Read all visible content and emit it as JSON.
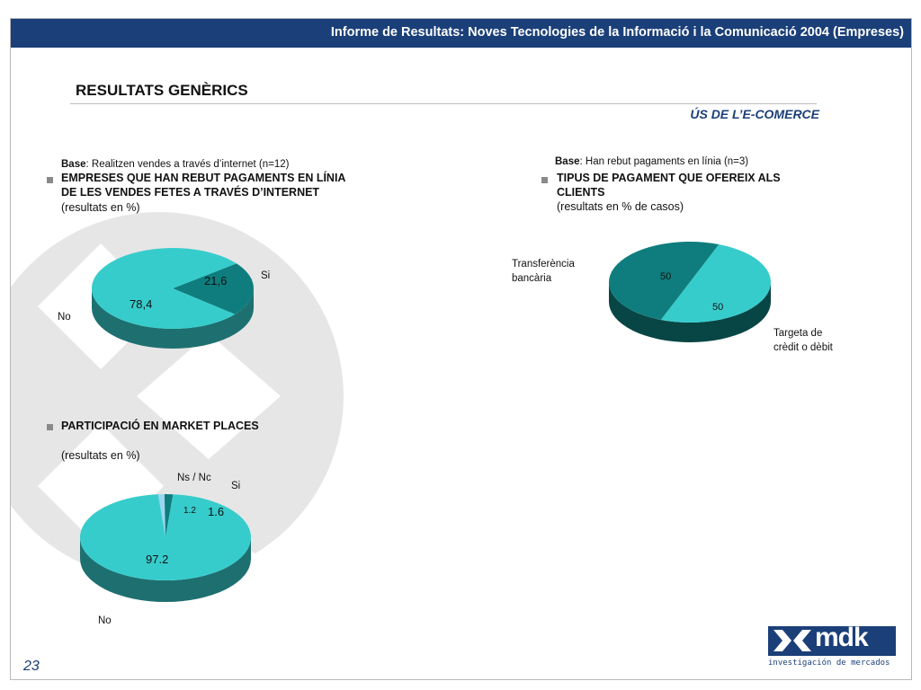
{
  "header": {
    "title": "Informe de Resultats: Noves Tecnologies de la Informació i la Comunicació 2004 (Empreses)"
  },
  "page": {
    "title": "RESULTATS GENÈRICS",
    "subtitle": "ÚS DE L’E-COMERCE",
    "number": "23"
  },
  "section1": {
    "base_label": "Base",
    "base_text": ": Realitzen vendes a través d’internet (n=12)",
    "heading_line1": "EMPRESES QUE HAN REBUT PAGAMENTS EN LÍNIA",
    "heading_line2": "DE LES VENDES FETES A TRAVÉS D’INTERNET",
    "note": "(resultats en %)"
  },
  "section2": {
    "base_label": "Base",
    "base_text": ": Han rebut pagaments en línia (n=3)",
    "heading_line1": "TIPUS DE PAGAMENT QUE OFEREIX ALS",
    "heading_line2": "CLIENTS",
    "note": "(resultats en % de casos)"
  },
  "section3": {
    "heading": "PARTICIPACIÓ EN MARKET PLACES",
    "note": "(resultats en %)"
  },
  "chart_data": [
    {
      "type": "pie",
      "slices": [
        {
          "label": "Si",
          "value": 21.6,
          "value_text": "21,6",
          "color": "#0f7d7d"
        },
        {
          "label": "No",
          "value": 78.4,
          "value_text": "78,4",
          "color": "#37cccc"
        }
      ]
    },
    {
      "type": "pie",
      "slices": [
        {
          "label": "Transferència bancària",
          "value": 50,
          "value_text": "50",
          "color": "#37cccc"
        },
        {
          "label": "Targeta de crèdit o dèbit",
          "value": 50,
          "value_text": "50",
          "color": "#0f7d7d"
        }
      ]
    },
    {
      "type": "pie",
      "slices": [
        {
          "label": "Ns / Nc",
          "value": 1.2,
          "value_text": "1.2",
          "color": "#9ad7f0"
        },
        {
          "label": "Si",
          "value": 1.6,
          "value_text": "1.6",
          "color": "#0f7d7d"
        },
        {
          "label": "No",
          "value": 97.2,
          "value_text": "97.2",
          "color": "#37cccc"
        }
      ]
    }
  ],
  "labels": {
    "pie2_left": [
      "Transferència",
      "bancària"
    ],
    "pie2_right": [
      "Targeta de",
      "crèdit o dèbit"
    ]
  },
  "logo": {
    "brand": "mdk",
    "tagline": "investigación de mercados"
  }
}
